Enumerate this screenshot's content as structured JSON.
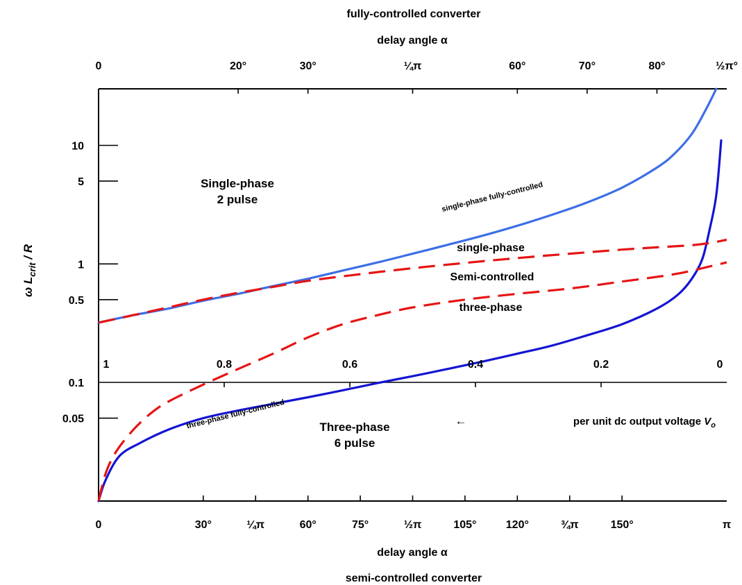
{
  "chart_data": {
    "type": "line",
    "title_top": "fully-controlled converter",
    "xlabel_top": "delay angle α",
    "xlabel_bottom": "delay angle α",
    "title_bottom": "semi-controlled converter",
    "ylabel": {
      "main": "ω L",
      "sub": "crit",
      "tail": " / R"
    },
    "y_scale": "log",
    "ylim": [
      0.01,
      30
    ],
    "top_ticks": [
      {
        "label": "0",
        "angle_deg": 0
      },
      {
        "label": "20°",
        "angle_deg": 20
      },
      {
        "label": "30°",
        "angle_deg": 30
      },
      {
        "label": "¼π",
        "angle_deg": 45
      },
      {
        "label": "60°",
        "angle_deg": 60
      },
      {
        "label": "70°",
        "angle_deg": 70
      },
      {
        "label": "80°",
        "angle_deg": 80
      },
      {
        "label": "½π°",
        "angle_deg": 90
      }
    ],
    "bottom_ticks": [
      {
        "label": "0",
        "angle_deg": 0
      },
      {
        "label": "30°",
        "angle_deg": 30
      },
      {
        "label": "¼π",
        "angle_deg": 45
      },
      {
        "label": "60°",
        "angle_deg": 60
      },
      {
        "label": "75°",
        "angle_deg": 75
      },
      {
        "label": "½π",
        "angle_deg": 90
      },
      {
        "label": "105°",
        "angle_deg": 105
      },
      {
        "label": "120°",
        "angle_deg": 120
      },
      {
        "label": "¾π",
        "angle_deg": 135
      },
      {
        "label": "150°",
        "angle_deg": 150
      },
      {
        "label": "π",
        "angle_deg": 180
      }
    ],
    "y_ticks": [
      {
        "label": "0.05",
        "value": 0.05
      },
      {
        "label": "0.1",
        "value": 0.1
      },
      {
        "label": "0.5",
        "value": 0.5
      },
      {
        "label": "1",
        "value": 1
      },
      {
        "label": "5",
        "value": 5
      },
      {
        "label": "10",
        "value": 10
      }
    ],
    "voltage_axis": {
      "ticks": [
        {
          "label": "1",
          "value": 1.0
        },
        {
          "label": "0.8",
          "value": 0.8
        },
        {
          "label": "0.6",
          "value": 0.6
        },
        {
          "label": "0.4",
          "value": 0.4
        },
        {
          "label": "0.2",
          "value": 0.2
        },
        {
          "label": "0",
          "value": 0.0
        }
      ],
      "arrow": "←",
      "label": "per unit dc output voltage",
      "symbol": "V",
      "symbol_sub": "o"
    },
    "series": [
      {
        "name": "single-phase fully-controlled",
        "axis": "top",
        "color": "#3c6ee6",
        "dash": "solid",
        "x": [
          0,
          5,
          10,
          15,
          20,
          25,
          30,
          35,
          40,
          45,
          50,
          55,
          60,
          65,
          70,
          75,
          80,
          82.5,
          85,
          87,
          88.5
        ],
        "y": [
          0.32,
          0.37,
          0.42,
          0.49,
          0.56,
          0.65,
          0.75,
          0.88,
          1.03,
          1.22,
          1.45,
          1.73,
          2.1,
          2.6,
          3.3,
          4.4,
          6.5,
          8.5,
          12.5,
          20.0,
          30.0
        ]
      },
      {
        "name": "three-phase fully-controlled",
        "axis": "top",
        "color": "#1414d2",
        "dash": "solid",
        "x": [
          0,
          1,
          3,
          6,
          10,
          15,
          20,
          25,
          30,
          35,
          40,
          45,
          50,
          55,
          60,
          65,
          70,
          75,
          80,
          83,
          85,
          86.5,
          87.5,
          88.5,
          89.2
        ],
        "y": [
          0.01,
          0.015,
          0.024,
          0.031,
          0.04,
          0.05,
          0.058,
          0.066,
          0.075,
          0.086,
          0.099,
          0.113,
          0.13,
          0.15,
          0.175,
          0.205,
          0.25,
          0.31,
          0.42,
          0.55,
          0.75,
          1.1,
          1.9,
          3.8,
          11.0
        ]
      },
      {
        "name": "single-phase semi-controlled",
        "axis": "bottom",
        "color": "#e61414",
        "dash": "dashed",
        "x": [
          0,
          10,
          20,
          30,
          40,
          50,
          60,
          75,
          90,
          105,
          120,
          135,
          150,
          160,
          170,
          175,
          180
        ],
        "y": [
          0.32,
          0.37,
          0.43,
          0.5,
          0.57,
          0.64,
          0.72,
          0.82,
          0.92,
          1.02,
          1.12,
          1.22,
          1.32,
          1.38,
          1.44,
          1.5,
          1.6
        ]
      },
      {
        "name": "three-phase semi-controlled",
        "axis": "bottom",
        "color": "#e61414",
        "dash": "dashed",
        "x": [
          0,
          2,
          5,
          10,
          15,
          20,
          30,
          40,
          50,
          60,
          70,
          80,
          90,
          105,
          120,
          135,
          150,
          165,
          175,
          180
        ],
        "y": [
          0.01,
          0.017,
          0.026,
          0.04,
          0.055,
          0.069,
          0.096,
          0.13,
          0.175,
          0.24,
          0.31,
          0.37,
          0.43,
          0.5,
          0.56,
          0.62,
          0.71,
          0.82,
          0.95,
          1.03
        ]
      }
    ],
    "annotations": [
      {
        "key": "sp_region_1",
        "text": "Single-phase"
      },
      {
        "key": "sp_region_2",
        "text": "2 pulse"
      },
      {
        "key": "tp_region_1",
        "text": "Three-phase"
      },
      {
        "key": "tp_region_2",
        "text": "6 pulse"
      },
      {
        "key": "semi_1",
        "text": "single-phase"
      },
      {
        "key": "semi_2",
        "text": "Semi-controlled"
      },
      {
        "key": "semi_3",
        "text": "three-phase"
      }
    ],
    "grid": false,
    "legend": "none"
  }
}
